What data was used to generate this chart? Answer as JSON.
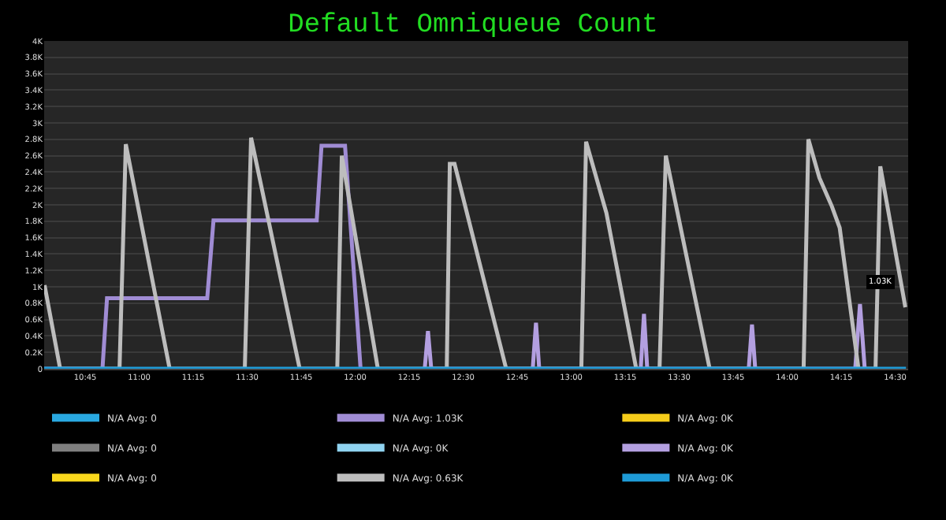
{
  "chart_data": {
    "type": "line",
    "title": "Default Omniqueue Count",
    "xlim": [
      10.56,
      14.56
    ],
    "ylim": [
      0,
      4
    ],
    "xticks": [
      {
        "value": 10.75,
        "label": "10:45"
      },
      {
        "value": 11,
        "label": "11:00"
      },
      {
        "value": 11.25,
        "label": "11:15"
      },
      {
        "value": 11.5,
        "label": "11:30"
      },
      {
        "value": 11.75,
        "label": "11:45"
      },
      {
        "value": 12,
        "label": "12:00"
      },
      {
        "value": 12.25,
        "label": "12:15"
      },
      {
        "value": 12.5,
        "label": "12:30"
      },
      {
        "value": 12.75,
        "label": "12:45"
      },
      {
        "value": 13,
        "label": "13:00"
      },
      {
        "value": 13.25,
        "label": "13:15"
      },
      {
        "value": 13.5,
        "label": "13:30"
      },
      {
        "value": 13.75,
        "label": "13:45"
      },
      {
        "value": 14,
        "label": "14:00"
      },
      {
        "value": 14.25,
        "label": "14:15"
      },
      {
        "value": 14.5,
        "label": "14:30"
      }
    ],
    "yticks": [
      0,
      {
        "value": 0.2,
        "label": "0.2K"
      },
      {
        "value": 0.4,
        "label": "0.4K"
      },
      {
        "value": 0.6,
        "label": "0.6K"
      },
      {
        "value": 0.8,
        "label": "0.8K"
      },
      {
        "value": 1,
        "label": "1K"
      },
      {
        "value": 1.2,
        "label": "1.2K"
      },
      {
        "value": 1.4,
        "label": "1.4K"
      },
      {
        "value": 1.6,
        "label": "1.6K"
      },
      {
        "value": 1.8,
        "label": "1.8K"
      },
      {
        "value": 2,
        "label": "2K"
      },
      {
        "value": 2.2,
        "label": "2.2K"
      },
      {
        "value": 2.4,
        "label": "2.4K"
      },
      {
        "value": 2.6,
        "label": "2.6K"
      },
      {
        "value": 2.8,
        "label": "2.8K"
      },
      {
        "value": 3,
        "label": "3K"
      },
      {
        "value": 3.2,
        "label": "3.2K"
      },
      {
        "value": 3.4,
        "label": "3.4K"
      },
      {
        "value": 3.6,
        "label": "3.6K"
      },
      {
        "value": 3.8,
        "label": "3.8K"
      },
      {
        "value": 4,
        "label": "4K"
      }
    ],
    "grid": "y",
    "legend": "bottom",
    "marker": "none",
    "line_style": "solid",
    "annotations": [
      {
        "text": "1.03K",
        "x": 14.43,
        "y": 1.05
      }
    ],
    "series": [
      {
        "name": "N/A Avg: 0",
        "color": "#29a8e0",
        "values": [
          null
        ]
      },
      {
        "name": "N/A Avg: 1.03K",
        "color": "#a08cd4",
        "x": [
          10.56,
          10.83,
          10.851,
          11.315,
          11.344,
          11.822,
          11.844,
          11.953,
          12.025
        ],
        "values": [
          0,
          0,
          0.86,
          0.86,
          1.81,
          1.81,
          2.72,
          2.72,
          0
        ]
      },
      {
        "name": "N/A Avg: 0K",
        "color": "#f5cc1a",
        "values": [
          null
        ]
      },
      {
        "name": "N/A Avg: 0",
        "color": "#7f7f7f",
        "values": [
          null
        ]
      },
      {
        "name": "N/A Avg: 0K",
        "color": "#8fd3f0",
        "values": [
          null
        ]
      },
      {
        "name": "N/A Avg: 0K",
        "color": "#b39fe0",
        "x": [
          12.322,
          12.337,
          12.352,
          12.822,
          12.837,
          12.852,
          13.322,
          13.337,
          13.352,
          13.822,
          13.837,
          13.852,
          14.315,
          14.337,
          14.359
        ],
        "values": [
          0,
          0.46,
          0,
          0,
          0.56,
          0,
          0,
          0.67,
          0,
          0,
          0.54,
          0,
          0,
          0.79,
          0
        ]
      },
      {
        "name": "N/A Avg: 0",
        "color": "#f9d71c",
        "values": [
          null
        ]
      },
      {
        "name": "N/A Avg: 0.63K",
        "color": "#bdbdbd",
        "x": [
          10.562,
          10.634,
          10.909,
          10.938,
          11.141,
          11.489,
          11.518,
          11.743,
          11.917,
          11.938,
          12.105,
          12.424,
          12.438,
          12.46,
          12.699,
          13.047,
          13.069,
          13.163,
          13.301,
          13.409,
          13.438,
          13.641,
          14.076,
          14.098,
          14.149,
          14.207,
          14.243,
          14.33,
          14.409,
          14.431,
          14.547
        ],
        "values": [
          1.02,
          0,
          0,
          2.74,
          0,
          0,
          2.82,
          0,
          0,
          2.6,
          0,
          0,
          2.5,
          2.5,
          0,
          0,
          2.77,
          1.9,
          0,
          0,
          2.6,
          0,
          0,
          2.8,
          2.33,
          1.98,
          1.72,
          0,
          0,
          2.47,
          0.75
        ]
      },
      {
        "name": "N/A Avg: 0K",
        "color": "#1e9ad6",
        "x": [
          10.56,
          14.55
        ],
        "values": [
          0,
          0
        ]
      }
    ]
  }
}
